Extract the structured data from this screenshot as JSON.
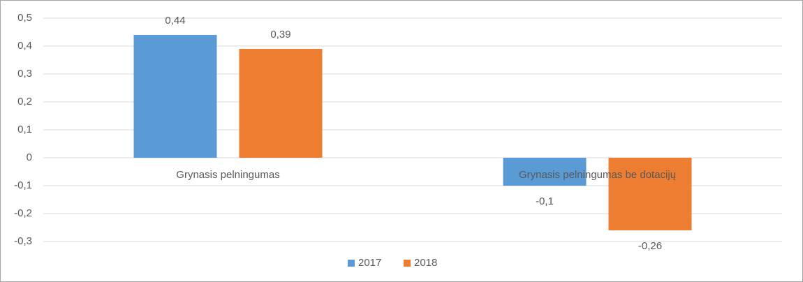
{
  "chart_data": {
    "type": "bar",
    "categories": [
      "Grynasis pelningumas",
      "Grynasis pelningumas be dotacijų"
    ],
    "series": [
      {
        "name": "2017",
        "color": "#5b9bd5",
        "values": [
          0.44,
          -0.1
        ],
        "value_labels": [
          "0,44",
          "-0,1"
        ]
      },
      {
        "name": "2018",
        "color": "#ed7d31",
        "values": [
          0.39,
          -0.26
        ],
        "value_labels": [
          "0,39",
          "-0,26"
        ]
      }
    ],
    "ylim": [
      -0.3,
      0.5
    ],
    "yticks": [
      {
        "value": -0.3,
        "label": "-0,3"
      },
      {
        "value": -0.2,
        "label": "-0,2"
      },
      {
        "value": -0.1,
        "label": "-0,1"
      },
      0,
      {
        "value": 0.1,
        "label": "0,1"
      },
      {
        "value": 0.2,
        "label": "0,2"
      },
      {
        "value": 0.3,
        "label": "0,3"
      },
      {
        "value": 0.4,
        "label": "0,4"
      },
      {
        "value": 0.5,
        "label": "0,5"
      }
    ],
    "grid": true,
    "legend": "bottom"
  }
}
